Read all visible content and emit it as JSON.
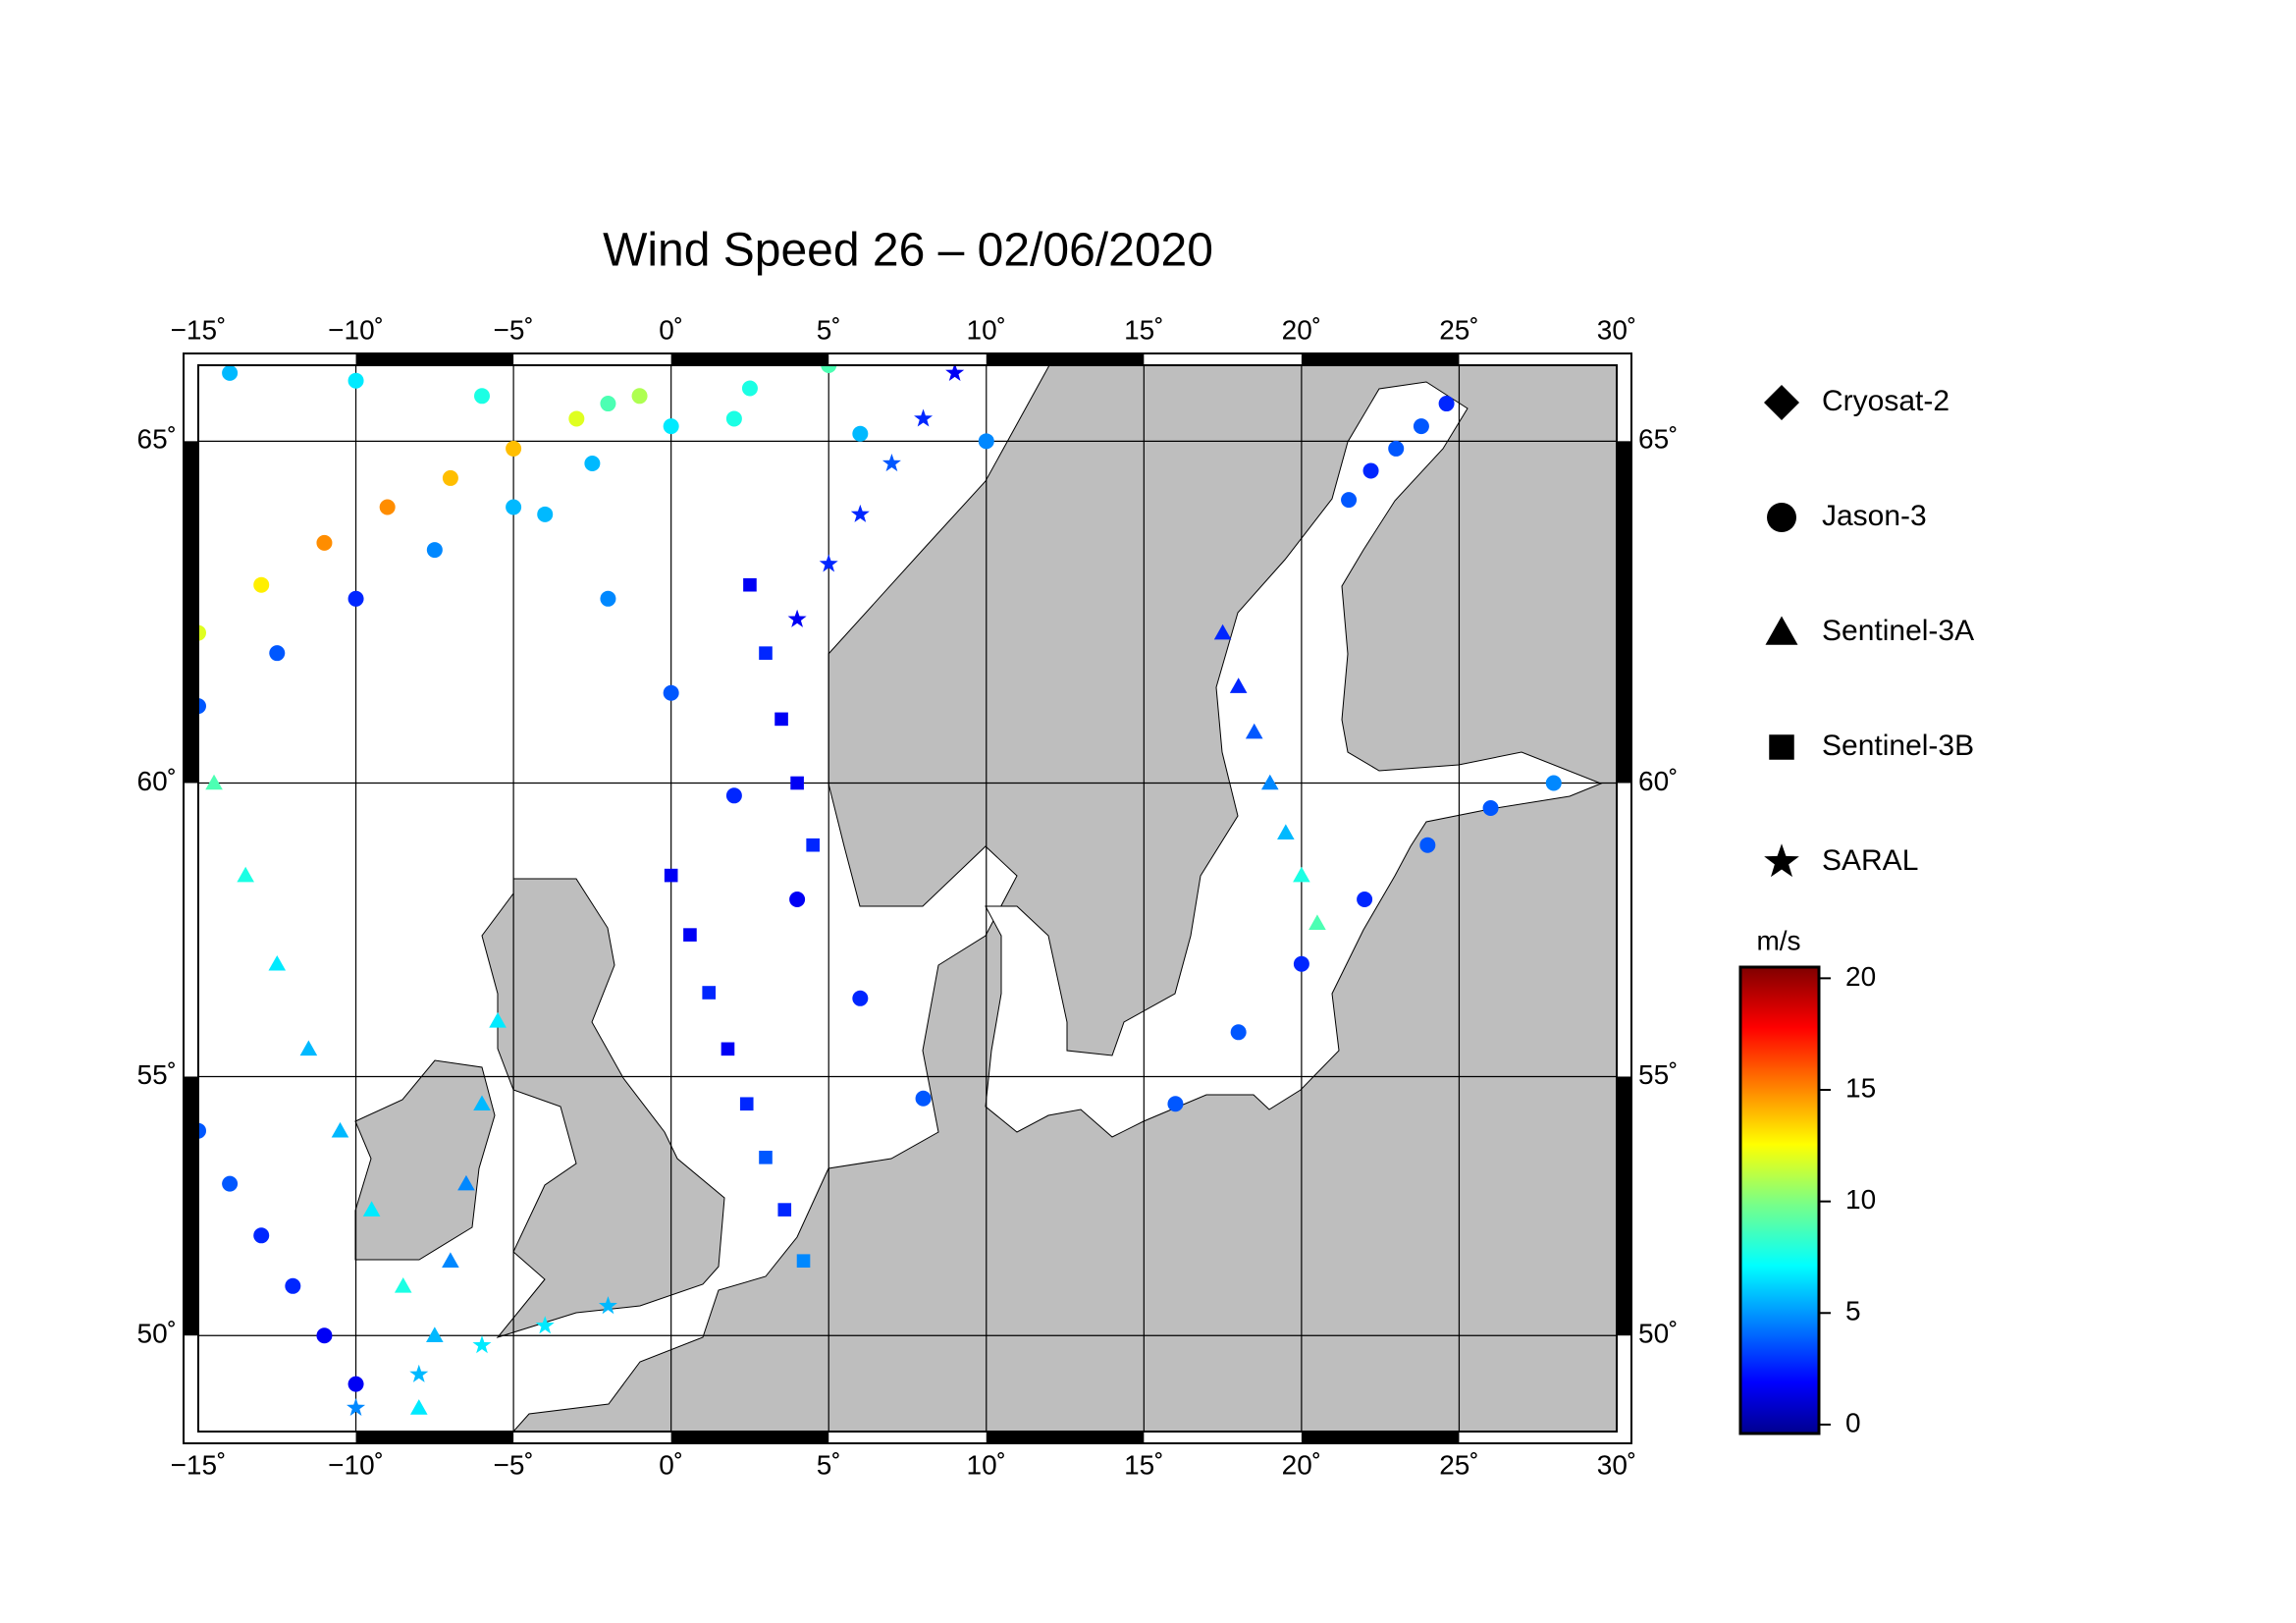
{
  "map": {
    "title": "Wind Speed 26 – 02/06/2020",
    "lonlim": [
      -15,
      30
    ],
    "latlim": [
      48.0,
      66.0
    ],
    "projection": "mercator",
    "lon_ticks": [
      {
        "value": -15,
        "label": "−15˚"
      },
      {
        "value": -10,
        "label": "−10˚"
      },
      {
        "value": -5,
        "label": "−5˚"
      },
      {
        "value": 0,
        "label": "0˚"
      },
      {
        "value": 5,
        "label": "5˚"
      },
      {
        "value": 10,
        "label": "10˚"
      },
      {
        "value": 15,
        "label": "15˚"
      },
      {
        "value": 20,
        "label": "20˚"
      },
      {
        "value": 25,
        "label": "25˚"
      },
      {
        "value": 30,
        "label": "30˚"
      }
    ],
    "lat_ticks": [
      {
        "value": 50,
        "label": "50˚"
      },
      {
        "value": 55,
        "label": "55˚"
      },
      {
        "value": 60,
        "label": "60˚"
      },
      {
        "value": 65,
        "label": "65˚"
      }
    ],
    "grid": true,
    "colorbar": {
      "unit": "m/s",
      "lim": [
        -0.4,
        20.5
      ],
      "ticks": [
        0,
        5,
        10,
        15,
        20
      ],
      "colormap": "jet"
    },
    "satellites": [
      {
        "name": "Cryosat-2",
        "symbol": "diamond",
        "tracks": []
      },
      {
        "name": "Jason-3",
        "symbol": "circle",
        "tracks": [
          {
            "lon": [
              -15,
              -12.5,
              -10,
              -7.5,
              -5,
              -2.5,
              0,
              2.5,
              5
            ],
            "lat": [
              61.2,
              62,
              62.8,
              63.5,
              64.1,
              64.7,
              65.2,
              65.7,
              66
            ],
            "speed": [
              4,
              4,
              3,
              5,
              6,
              6,
              7,
              8,
              9
            ]
          },
          {
            "lon": [
              -15,
              -13,
              -11,
              -9,
              -7,
              -5,
              -3,
              -1
            ],
            "lat": [
              62.3,
              63,
              63.6,
              64.1,
              64.5,
              64.9,
              65.3,
              65.6
            ],
            "speed": [
              12,
              13,
              15,
              15,
              14,
              14,
              12,
              11
            ]
          },
          {
            "lon": [
              -4,
              -2,
              0,
              2,
              4,
              6,
              8
            ],
            "lat": [
              64,
              62.8,
              61.4,
              59.8,
              58.1,
              56.4,
              54.6
            ],
            "speed": [
              6,
              5,
              4,
              3,
              2,
              3,
              4
            ]
          },
          {
            "lon": [
              16,
              18,
              20,
              22,
              24,
              26,
              28
            ],
            "lat": [
              54.5,
              55.8,
              57,
              58.1,
              59,
              59.6,
              60
            ],
            "speed": [
              4,
              4,
              3,
              3,
              4,
              4,
              5
            ]
          },
          {
            "lon": [
              21.5,
              22.2,
              23,
              23.8,
              24.6
            ],
            "lat": [
              64.2,
              64.6,
              64.9,
              65.2,
              65.5
            ],
            "speed": [
              4,
              3,
              4,
              4,
              3
            ]
          },
          {
            "lon": [
              -10,
              -11,
              -12,
              -13,
              -14,
              -15
            ],
            "lat": [
              49,
              50,
              51,
              52,
              53,
              54
            ],
            "speed": [
              2,
              2,
              3,
              3,
              4,
              4
            ]
          },
          {
            "lon": [
              -14,
              -10,
              -6,
              -2,
              2,
              6,
              10
            ],
            "lat": [
              65.9,
              65.8,
              65.6,
              65.5,
              65.3,
              65.1,
              65
            ],
            "speed": [
              6,
              7,
              8,
              9,
              8,
              6,
              5
            ]
          }
        ]
      },
      {
        "name": "Sentinel-3A",
        "symbol": "triangle",
        "tracks": [
          {
            "lon": [
              -14.5,
              -13.5,
              -12.5,
              -11.5,
              -10.5,
              -9.5,
              -8.5
            ],
            "lat": [
              60,
              58.5,
              57,
              55.5,
              54,
              52.5,
              51
            ],
            "speed": [
              9,
              8,
              7,
              6,
              6,
              7,
              8
            ]
          },
          {
            "lon": [
              17.5,
              18,
              18.5,
              19,
              19.5,
              20,
              20.5
            ],
            "lat": [
              62.3,
              61.5,
              60.8,
              60,
              59.2,
              58.5,
              57.7
            ],
            "speed": [
              3,
              3,
              4,
              5,
              6,
              8,
              9
            ]
          },
          {
            "lon": [
              -8,
              -7.5,
              -7,
              -6.5,
              -6,
              -5.5
            ],
            "lat": [
              48.5,
              50,
              51.5,
              53,
              54.5,
              56
            ],
            "speed": [
              7,
              6,
              5,
              5,
              6,
              7
            ]
          }
        ]
      },
      {
        "name": "Sentinel-3B",
        "symbol": "square",
        "tracks": [
          {
            "lon": [
              0,
              0.6,
              1.2,
              1.8,
              2.4,
              3,
              3.6,
              4.2
            ],
            "lat": [
              58.5,
              57.5,
              56.5,
              55.5,
              54.5,
              53.5,
              52.5,
              51.5
            ],
            "speed": [
              2,
              2,
              3,
              2,
              3,
              4,
              3,
              5
            ]
          },
          {
            "lon": [
              2.5,
              3,
              3.5,
              4,
              4.5
            ],
            "lat": [
              63,
              62,
              61,
              60,
              59
            ],
            "speed": [
              2,
              3,
              2,
              2,
              3
            ]
          }
        ]
      },
      {
        "name": "SARAL",
        "symbol": "star",
        "tracks": [
          {
            "lon": [
              4,
              5,
              6,
              7,
              8,
              9
            ],
            "lat": [
              62.5,
              63.3,
              64,
              64.7,
              65.3,
              65.9
            ],
            "speed": [
              2,
              3,
              3,
              4,
              3,
              2
            ]
          },
          {
            "lon": [
              -10,
              -8,
              -6,
              -4,
              -2
            ],
            "lat": [
              48.5,
              49.2,
              49.8,
              50.2,
              50.6
            ],
            "speed": [
              5,
              6,
              7,
              7,
              6
            ]
          }
        ]
      }
    ]
  }
}
